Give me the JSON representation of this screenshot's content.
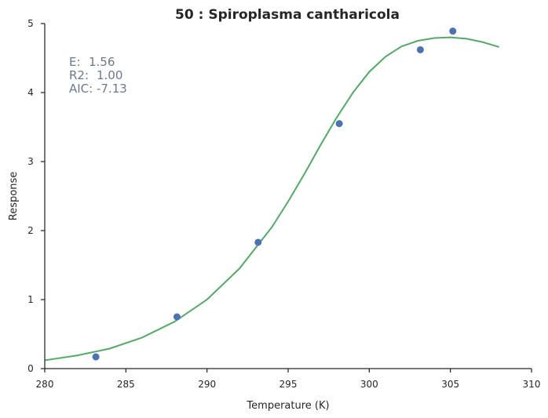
{
  "chart_data": {
    "type": "scatter",
    "title": "50 : Spiroplasma cantharicola",
    "xlabel": "Temperature (K)",
    "ylabel": "Response",
    "xlim": [
      280,
      310
    ],
    "ylim": [
      0,
      5
    ],
    "xticks": [
      "280",
      "285",
      "290",
      "295",
      "300",
      "305",
      "310"
    ],
    "yticks": [
      "0",
      "1",
      "2",
      "3",
      "4",
      "5"
    ],
    "grid": false,
    "colors": {
      "points": "#4c72b0",
      "fit": "#55a868"
    },
    "points": {
      "x": [
        283.15,
        288.15,
        293.15,
        298.15,
        303.15,
        305.15
      ],
      "y": [
        0.17,
        0.75,
        1.83,
        3.55,
        4.62,
        4.89
      ]
    },
    "fit": {
      "x": [
        280,
        282,
        284,
        286,
        288,
        290,
        292,
        294,
        295,
        296,
        297,
        298,
        299,
        300,
        301,
        302,
        303,
        304,
        305,
        306,
        307,
        308
      ],
      "y": [
        0.12,
        0.19,
        0.29,
        0.45,
        0.68,
        1.0,
        1.45,
        2.05,
        2.42,
        2.82,
        3.24,
        3.64,
        4.0,
        4.3,
        4.52,
        4.67,
        4.75,
        4.79,
        4.8,
        4.78,
        4.73,
        4.66
      ]
    },
    "annotations": [
      {
        "label": "E:",
        "value": "1.56"
      },
      {
        "label": "R2:",
        "value": "1.00"
      },
      {
        "label": "AIC:",
        "value": "-7.13"
      }
    ]
  }
}
